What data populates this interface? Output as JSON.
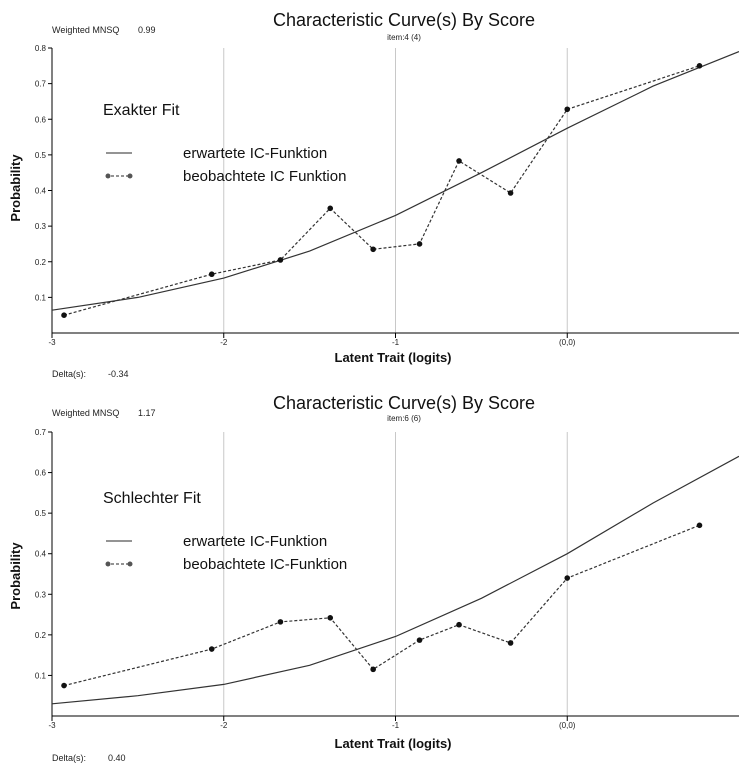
{
  "chart_data": [
    {
      "type": "line",
      "title": "Characteristic Curve(s) By Score",
      "subtitle": "item:4 (4)",
      "weighted_mnsq_label": "Weighted MNSQ",
      "weighted_mnsq_value": "0.99",
      "delta_label": "Delta(s):",
      "delta_value": "-0.34",
      "annotation": "Exakter Fit",
      "xlabel": "Latent Trait (logits)",
      "ylabel": "Probability",
      "xlim": [
        -3,
        1
      ],
      "ylim": [
        0,
        0.8
      ],
      "x_ticks": [
        {
          "value": -3,
          "label": "-3"
        },
        {
          "value": -2,
          "label": "-2"
        },
        {
          "value": -1,
          "label": "-1"
        },
        {
          "value": 0,
          "label": "(0,0)"
        }
      ],
      "y_ticks": [
        {
          "value": 0.1,
          "label": "0.1"
        },
        {
          "value": 0.2,
          "label": "0.2"
        },
        {
          "value": 0.3,
          "label": "0.3"
        },
        {
          "value": 0.4,
          "label": "0.4"
        },
        {
          "value": 0.5,
          "label": "0.5"
        },
        {
          "value": 0.6,
          "label": "0.6"
        },
        {
          "value": 0.7,
          "label": "0.7"
        },
        {
          "value": 0.8,
          "label": "0.8"
        }
      ],
      "grid": "vertical",
      "series": [
        {
          "name": "erwartete IC-Funktion",
          "style": "solid",
          "x": [
            -3,
            -2.5,
            -2,
            -1.5,
            -1,
            -0.5,
            0,
            0.5,
            1
          ],
          "y": [
            0.064,
            0.1,
            0.154,
            0.23,
            0.33,
            0.45,
            0.575,
            0.693,
            0.79
          ]
        },
        {
          "name": "beobachtete IC Funktion",
          "style": "dashed-markers",
          "x": [
            -2.93,
            -2.07,
            -1.67,
            -1.38,
            -1.13,
            -0.86,
            -0.63,
            -0.33,
            0.0,
            0.77
          ],
          "y": [
            0.05,
            0.165,
            0.205,
            0.35,
            0.235,
            0.25,
            0.483,
            0.393,
            0.628,
            0.75
          ]
        }
      ]
    },
    {
      "type": "line",
      "title": "Characteristic Curve(s) By Score",
      "subtitle": "item:6 (6)",
      "weighted_mnsq_label": "Weighted MNSQ",
      "weighted_mnsq_value": "1.17",
      "delta_label": "Delta(s):",
      "delta_value": "0.40",
      "annotation": "Schlechter Fit",
      "xlabel": "Latent Trait (logits)",
      "ylabel": "Probability",
      "xlim": [
        -3,
        1
      ],
      "ylim": [
        0,
        0.7
      ],
      "x_ticks": [
        {
          "value": -3,
          "label": "-3"
        },
        {
          "value": -2,
          "label": "-2"
        },
        {
          "value": -1,
          "label": "-1"
        },
        {
          "value": 0,
          "label": "(0,0)"
        }
      ],
      "y_ticks": [
        {
          "value": 0.1,
          "label": "0.1"
        },
        {
          "value": 0.2,
          "label": "0.2"
        },
        {
          "value": 0.3,
          "label": "0.3"
        },
        {
          "value": 0.4,
          "label": "0.4"
        },
        {
          "value": 0.5,
          "label": "0.5"
        },
        {
          "value": 0.6,
          "label": "0.6"
        },
        {
          "value": 0.7,
          "label": "0.7"
        }
      ],
      "grid": "vertical",
      "series": [
        {
          "name": "erwartete IC-Funktion",
          "style": "solid",
          "x": [
            -3,
            -2.5,
            -2,
            -1.5,
            -1,
            -0.5,
            0,
            0.5,
            1
          ],
          "y": [
            0.03,
            0.05,
            0.078,
            0.125,
            0.196,
            0.29,
            0.4,
            0.525,
            0.64
          ]
        },
        {
          "name": "beobachtete IC-Funktion",
          "style": "dashed-markers",
          "x": [
            -2.93,
            -2.07,
            -1.67,
            -1.38,
            -1.13,
            -0.86,
            -0.63,
            -0.33,
            0.0,
            0.77
          ],
          "y": [
            0.075,
            0.165,
            0.232,
            0.242,
            0.115,
            0.187,
            0.225,
            0.18,
            0.34,
            0.47
          ]
        }
      ]
    }
  ]
}
